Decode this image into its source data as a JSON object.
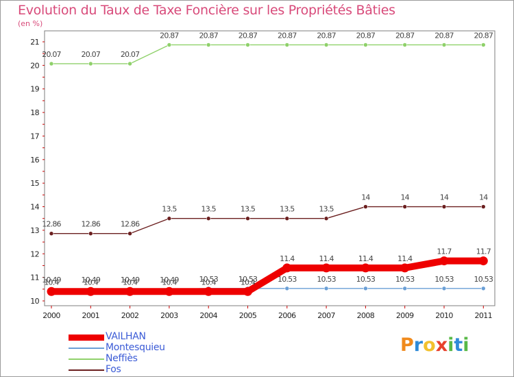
{
  "title": "Evolution du Taux de Taxe Foncière sur les Propriétés Bâties",
  "subtitle": "(en %)",
  "logo": {
    "letters": [
      "P",
      "r",
      "o",
      "x",
      "i",
      "t",
      "i"
    ],
    "colors": [
      "#f08a1c",
      "#2f8ad8",
      "#f2c12e",
      "#e8412c",
      "#58b947",
      "#2f8ad8",
      "#58b947"
    ]
  },
  "chart_data": {
    "type": "line",
    "title": "Evolution du Taux de Taxe Foncière sur les Propriétés Bâties",
    "ylabel": "(en %)",
    "xlabel": "",
    "categories": [
      "2000",
      "2001",
      "2002",
      "2003",
      "2004",
      "2005",
      "2006",
      "2007",
      "2008",
      "2009",
      "2010",
      "2011"
    ],
    "ylim": [
      10,
      21
    ],
    "yticks": [
      10,
      11,
      12,
      13,
      14,
      15,
      16,
      17,
      18,
      19,
      20,
      21
    ],
    "series": [
      {
        "name": "Fos",
        "color": "#6b1f1f",
        "style": "thin",
        "values": [
          12.86,
          12.86,
          12.86,
          13.5,
          13.5,
          13.5,
          13.5,
          13.5,
          14,
          14,
          14,
          14
        ],
        "labels": [
          "12.86",
          "12.86",
          "12.86",
          "13.5",
          "13.5",
          "13.5",
          "13.5",
          "13.5",
          "14",
          "14",
          "14",
          "14"
        ]
      },
      {
        "name": "Neffiès",
        "color": "#8fd16a",
        "style": "thin",
        "values": [
          20.07,
          20.07,
          20.07,
          20.87,
          20.87,
          20.87,
          20.87,
          20.87,
          20.87,
          20.87,
          20.87,
          20.87
        ],
        "labels": [
          "20.07",
          "20.07",
          "20.07",
          "20.87",
          "20.87",
          "20.87",
          "20.87",
          "20.87",
          "20.87",
          "20.87",
          "20.87",
          "20.87"
        ]
      },
      {
        "name": "Montesquieu",
        "color": "#6a9fd6",
        "style": "thin",
        "values": [
          10.49,
          10.49,
          10.49,
          10.49,
          10.53,
          10.53,
          10.53,
          10.53,
          10.53,
          10.53,
          10.53,
          10.53
        ],
        "labels": [
          "10.49",
          "10.49",
          "10.49",
          "10.49",
          "10.53",
          "10.53",
          "10.53",
          "10.53",
          "10.53",
          "10.53",
          "10.53",
          "10.53"
        ]
      },
      {
        "name": "VAILHAN",
        "color": "#ee0000",
        "style": "thick",
        "values": [
          10.4,
          10.4,
          10.4,
          10.4,
          10.4,
          10.4,
          11.4,
          11.4,
          11.4,
          11.4,
          11.7,
          11.7
        ],
        "labels": [
          "10.4",
          "10.4",
          "10.4",
          "10.4",
          "10.4",
          "10.4",
          "11.4",
          "11.4",
          "11.4",
          "11.4",
          "11.7",
          "11.7"
        ]
      }
    ],
    "legend": [
      "VAILHAN",
      "Montesquieu",
      "Neffiès",
      "Fos"
    ],
    "legend_position": "bottom-left"
  }
}
